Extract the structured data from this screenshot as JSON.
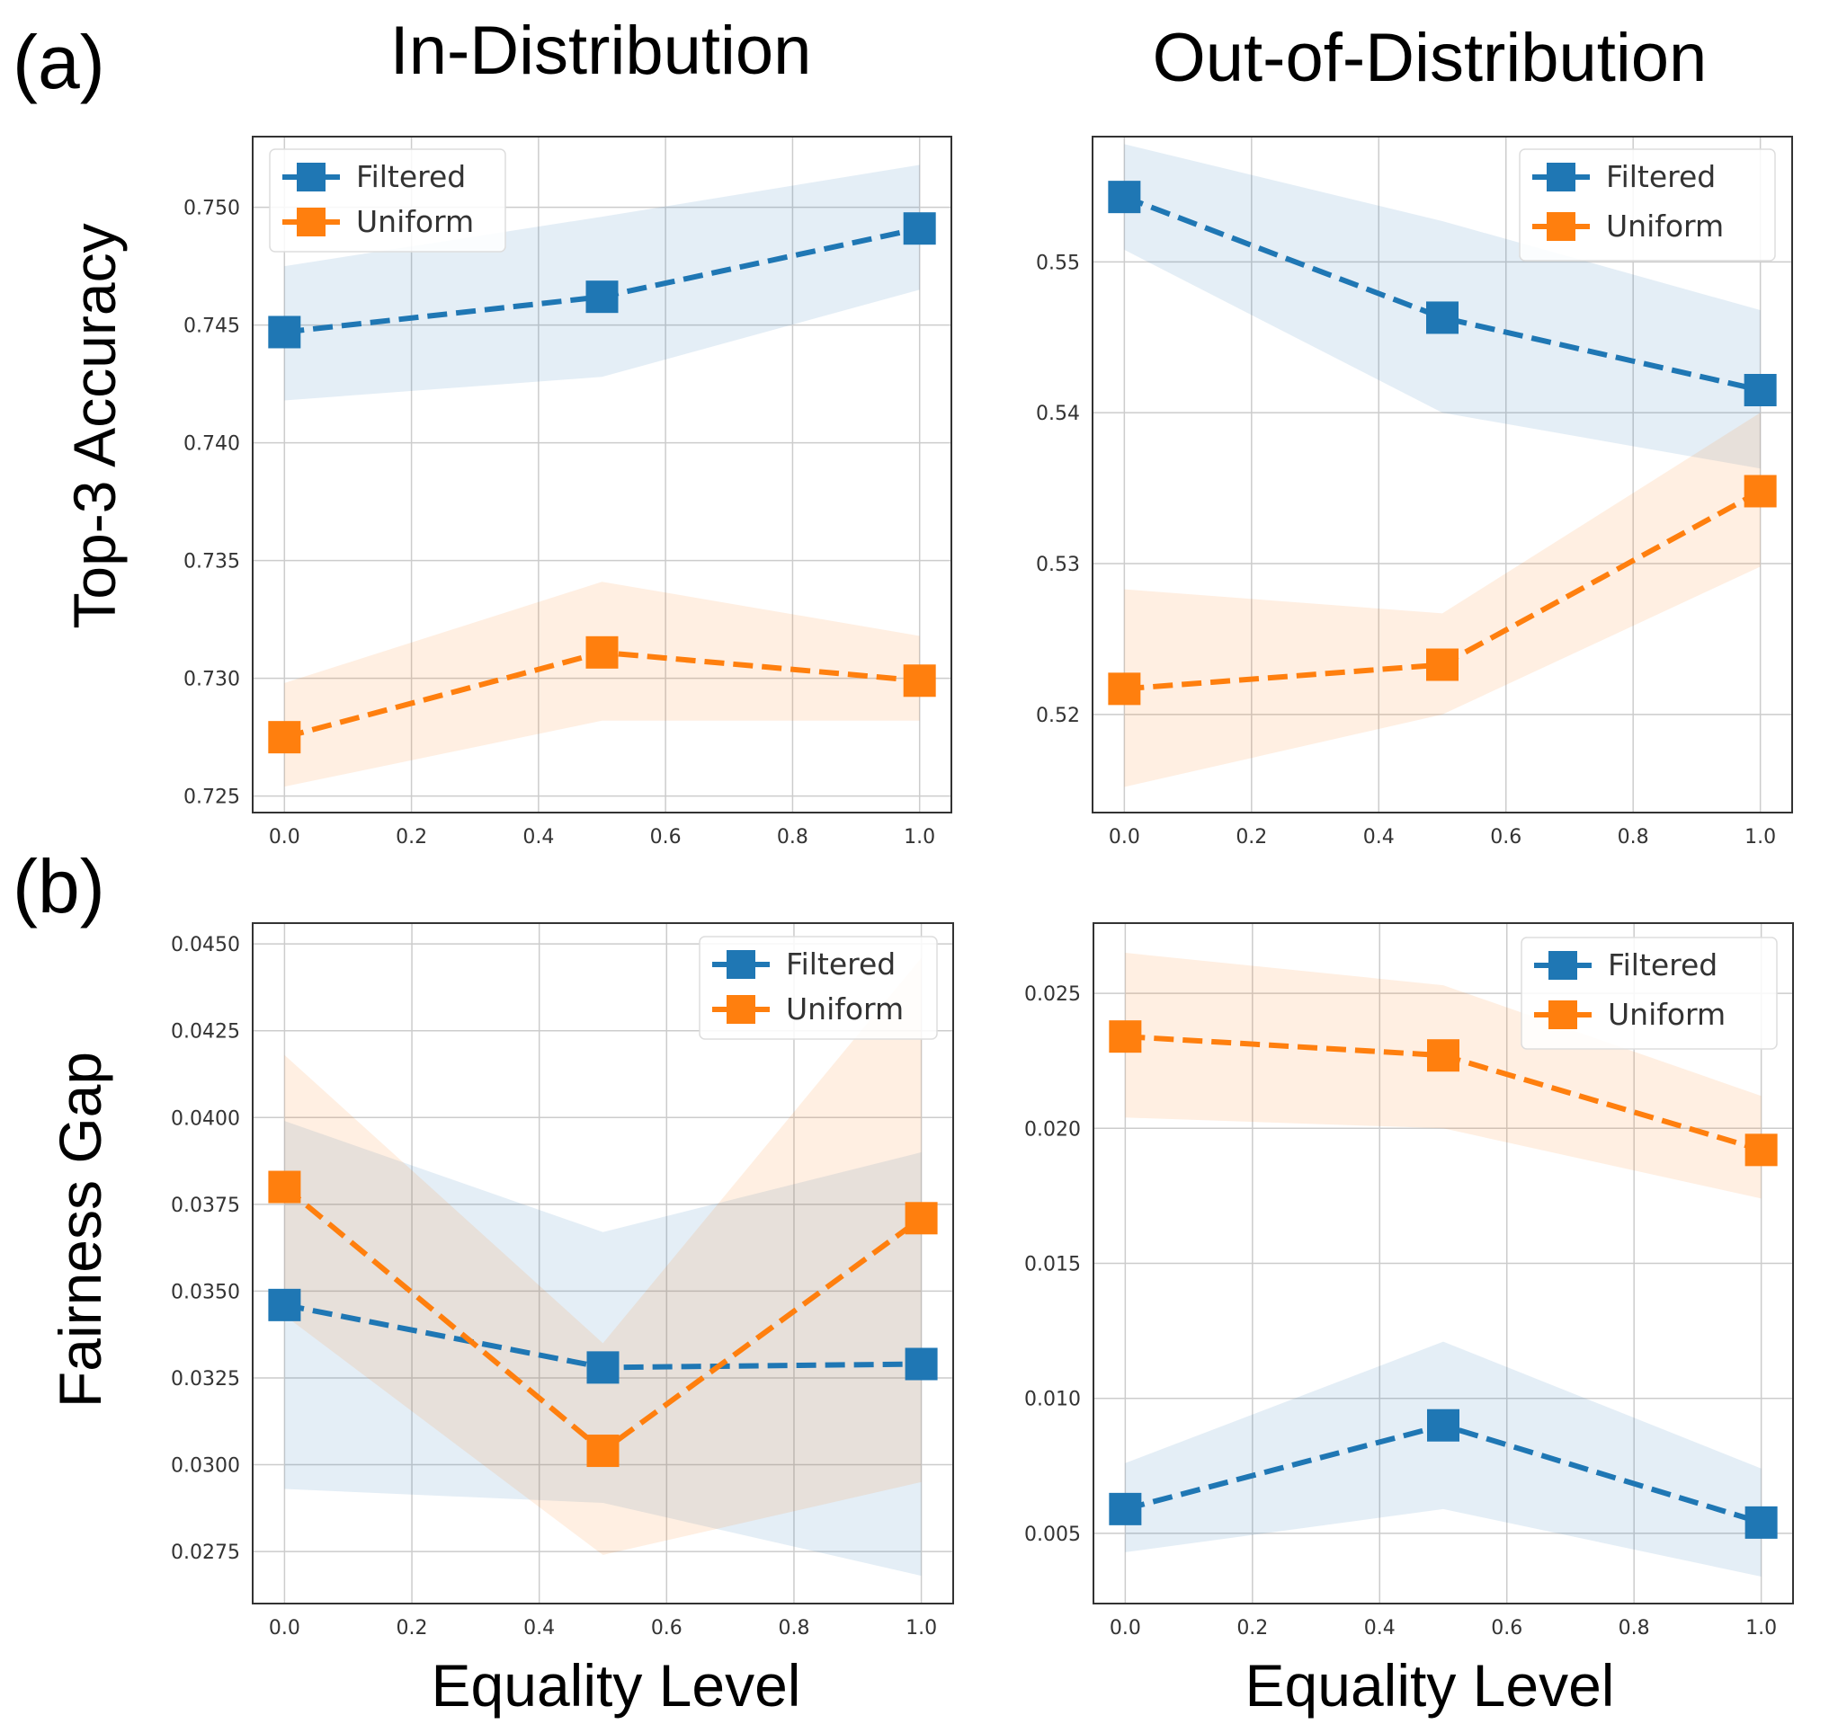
{
  "figure": {
    "label_a": "(a)",
    "label_b": "(b)",
    "col_title_left": "In-Distribution",
    "col_title_right": "Out-of-Distribution",
    "row_ylabel_top": "Top-3 Accuracy",
    "row_ylabel_bottom": "Fairness Gap",
    "xlabel": "Equality Level"
  },
  "colors": {
    "filtered": "#1f77b4",
    "uniform": "#ff7f0e",
    "grid": "#cccccc",
    "axes": "#333333"
  },
  "legend": {
    "filtered": "Filtered",
    "uniform": "Uniform"
  },
  "chart_data": [
    {
      "id": "a-in",
      "type": "line",
      "title": "",
      "xlabel": "",
      "ylabel": "",
      "legend_position": "top-left",
      "x": [
        0.0,
        0.5,
        1.0
      ],
      "xlim": [
        -0.05,
        1.05
      ],
      "ylim": [
        0.7243,
        0.753
      ],
      "xticks": [
        0.0,
        0.2,
        0.4,
        0.6,
        0.8,
        1.0
      ],
      "xtick_labels": [
        "0.0",
        "0.2",
        "0.4",
        "0.6",
        "0.8",
        "1.0"
      ],
      "yticks": [
        0.725,
        0.73,
        0.735,
        0.74,
        0.745,
        0.75
      ],
      "ytick_labels": [
        "0.725",
        "0.730",
        "0.735",
        "0.740",
        "0.745",
        "0.750"
      ],
      "series": [
        {
          "name": "Filtered",
          "color": "#1f77b4",
          "values": [
            0.7447,
            0.7462,
            0.7491
          ],
          "lower": [
            0.7418,
            0.7428,
            0.7465
          ],
          "upper": [
            0.7475,
            0.7496,
            0.7518
          ]
        },
        {
          "name": "Uniform",
          "color": "#ff7f0e",
          "values": [
            0.7275,
            0.7311,
            0.7299
          ],
          "lower": [
            0.7254,
            0.7282,
            0.7282
          ],
          "upper": [
            0.7298,
            0.7341,
            0.7318
          ]
        }
      ]
    },
    {
      "id": "a-ood",
      "type": "line",
      "title": "",
      "xlabel": "",
      "ylabel": "",
      "legend_position": "top-right",
      "x": [
        0.0,
        0.5,
        1.0
      ],
      "xlim": [
        -0.05,
        1.05
      ],
      "ylim": [
        0.5135,
        0.5583
      ],
      "xticks": [
        0.0,
        0.2,
        0.4,
        0.6,
        0.8,
        1.0
      ],
      "xtick_labels": [
        "0.0",
        "0.2",
        "0.4",
        "0.6",
        "0.8",
        "1.0"
      ],
      "yticks": [
        0.52,
        0.53,
        0.54,
        0.55
      ],
      "ytick_labels": [
        "0.52",
        "0.53",
        "0.54",
        "0.55"
      ],
      "series": [
        {
          "name": "Filtered",
          "color": "#1f77b4",
          "values": [
            0.5543,
            0.5463,
            0.5415
          ],
          "lower": [
            0.5508,
            0.54,
            0.5363
          ],
          "upper": [
            0.5578,
            0.5527,
            0.5468
          ]
        },
        {
          "name": "Uniform",
          "color": "#ff7f0e",
          "values": [
            0.5217,
            0.5233,
            0.5348
          ],
          "lower": [
            0.5152,
            0.52,
            0.5298
          ],
          "upper": [
            0.5283,
            0.5267,
            0.54
          ]
        }
      ]
    },
    {
      "id": "b-in",
      "type": "line",
      "title": "",
      "xlabel": "",
      "ylabel": "",
      "legend_position": "top-right",
      "x": [
        0.0,
        0.5,
        1.0
      ],
      "xlim": [
        -0.05,
        1.05
      ],
      "ylim": [
        0.026,
        0.0456
      ],
      "xticks": [
        0.0,
        0.2,
        0.4,
        0.6,
        0.8,
        1.0
      ],
      "xtick_labels": [
        "0.0",
        "0.2",
        "0.4",
        "0.6",
        "0.8",
        "1.0"
      ],
      "yticks": [
        0.0275,
        0.03,
        0.0325,
        0.035,
        0.0375,
        0.04,
        0.0425,
        0.045
      ],
      "ytick_labels": [
        "0.0275",
        "0.0300",
        "0.0325",
        "0.0350",
        "0.0375",
        "0.0400",
        "0.0425",
        "0.0450"
      ],
      "series": [
        {
          "name": "Filtered",
          "color": "#1f77b4",
          "values": [
            0.0346,
            0.0328,
            0.0329
          ],
          "lower": [
            0.0293,
            0.0289,
            0.0268
          ],
          "upper": [
            0.0399,
            0.0367,
            0.039
          ]
        },
        {
          "name": "Uniform",
          "color": "#ff7f0e",
          "values": [
            0.038,
            0.0304,
            0.0371
          ],
          "lower": [
            0.0343,
            0.0274,
            0.0295
          ],
          "upper": [
            0.0418,
            0.0335,
            0.0446
          ]
        }
      ]
    },
    {
      "id": "b-ood",
      "type": "line",
      "title": "",
      "xlabel": "",
      "ylabel": "",
      "legend_position": "top-right",
      "x": [
        0.0,
        0.5,
        1.0
      ],
      "xlim": [
        -0.05,
        1.05
      ],
      "ylim": [
        0.0024,
        0.0276
      ],
      "xticks": [
        0.0,
        0.2,
        0.4,
        0.6,
        0.8,
        1.0
      ],
      "xtick_labels": [
        "0.0",
        "0.2",
        "0.4",
        "0.6",
        "0.8",
        "1.0"
      ],
      "yticks": [
        0.005,
        0.01,
        0.015,
        0.02,
        0.025
      ],
      "ytick_labels": [
        "0.005",
        "0.010",
        "0.015",
        "0.020",
        "0.025"
      ],
      "series": [
        {
          "name": "Filtered",
          "color": "#1f77b4",
          "values": [
            0.0059,
            0.009,
            0.0054
          ],
          "lower": [
            0.0043,
            0.0059,
            0.0034
          ],
          "upper": [
            0.0076,
            0.0121,
            0.0074
          ]
        },
        {
          "name": "Uniform",
          "color": "#ff7f0e",
          "values": [
            0.0234,
            0.0227,
            0.0192
          ],
          "lower": [
            0.0204,
            0.02,
            0.0174
          ],
          "upper": [
            0.0265,
            0.0253,
            0.0212
          ]
        }
      ]
    }
  ]
}
